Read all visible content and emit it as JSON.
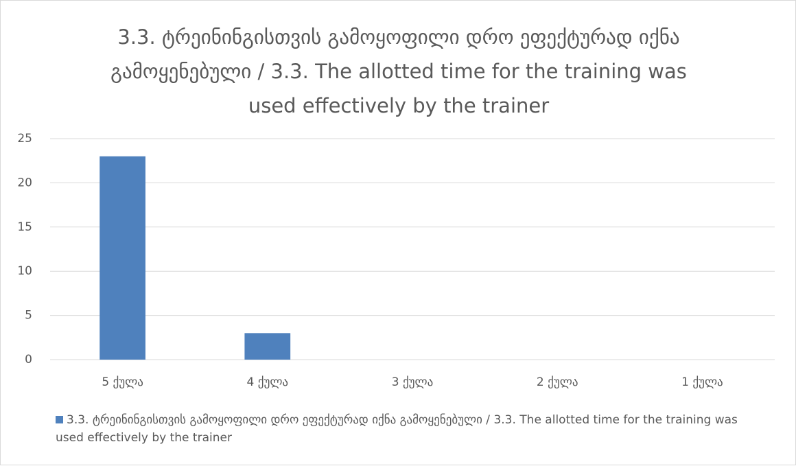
{
  "chart_data": {
    "type": "bar",
    "title": "3.3. ტრეინინგისთვის გამოყოფილი დრო ეფექტურად იქნა გამოყენებული  / 3.3. The allotted time for the training was used effectively by the trainer",
    "categories": [
      "5 ქულა",
      "4 ქულა",
      "3 ქულა",
      "2 ქულა",
      "1 ქულა"
    ],
    "series": [
      {
        "name": "3.3. ტრეინინგისთვის გამოყოფილი დრო ეფექტურად იქნა გამოყენებული  / 3.3. The allotted time for the training was used effectively by the trainer",
        "color": "#4f81bd",
        "values": [
          23,
          3,
          0,
          0,
          0
        ]
      }
    ],
    "ylim": [
      0,
      25
    ],
    "yticks": [
      0,
      5,
      10,
      15,
      20,
      25
    ],
    "grid": true,
    "legend": "bottom"
  }
}
